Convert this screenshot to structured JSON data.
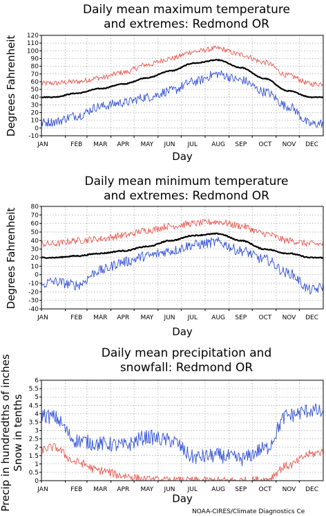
{
  "footer": "NOAA-CIRES/Climate Diagnostics Ce",
  "chart_data": [
    {
      "type": "line",
      "title_lines": [
        "Daily mean maximum temperature",
        "and extremes: Redmond OR"
      ],
      "xlabel": "Day",
      "ylabel": "Degrees Fahrenheit",
      "ylim": [
        -10,
        120
      ],
      "yticks": [
        "-10",
        "0",
        "10",
        "20",
        "30",
        "40",
        "50",
        "60",
        "70",
        "80",
        "90",
        "100",
        "110",
        "120"
      ],
      "xticks": [
        "JAN",
        "FEB",
        "MAR",
        "APR",
        "MAY",
        "JUN",
        "JUL",
        "AUG",
        "SEP",
        "OCT",
        "NOV",
        "DEC"
      ],
      "grid": true,
      "colors": {
        "high": "#e8584f",
        "mean": "#000000",
        "low": "#2f4fd8"
      },
      "series": [
        {
          "key": "high",
          "values": [
            58,
            60,
            65,
            72,
            82,
            90,
            99,
            103,
            95,
            85,
            68,
            57
          ]
        },
        {
          "key": "mean",
          "values": [
            40,
            45,
            51,
            57,
            65,
            74,
            84,
            88,
            78,
            64,
            48,
            40
          ]
        },
        {
          "key": "low",
          "values": [
            8,
            16,
            28,
            33,
            40,
            48,
            60,
            70,
            62,
            47,
            28,
            5
          ]
        }
      ]
    },
    {
      "type": "line",
      "title_lines": [
        "Daily mean minimum temperature",
        "and extremes: Redmond OR"
      ],
      "xlabel": "Day",
      "ylabel": "Degrees Fahrenheit",
      "ylim": [
        -40,
        80
      ],
      "yticks": [
        "-40",
        "-30",
        "-20",
        "-10",
        "0",
        "10",
        "20",
        "30",
        "40",
        "50",
        "60",
        "70",
        "80"
      ],
      "xticks": [
        "JAN",
        "FEB",
        "MAR",
        "APR",
        "MAY",
        "JUN",
        "JUL",
        "AUG",
        "SEP",
        "OCT",
        "NOV",
        "DEC"
      ],
      "grid": true,
      "colors": {
        "high": "#e8584f",
        "mean": "#000000",
        "low": "#2f4fd8"
      },
      "series": [
        {
          "key": "high",
          "values": [
            36,
            40,
            42,
            46,
            52,
            57,
            60,
            62,
            57,
            48,
            40,
            36
          ]
        },
        {
          "key": "mean",
          "values": [
            20,
            22,
            25,
            28,
            33,
            40,
            46,
            48,
            40,
            30,
            25,
            20
          ]
        },
        {
          "key": "low",
          "values": [
            -8,
            -12,
            5,
            15,
            22,
            28,
            35,
            38,
            28,
            18,
            2,
            -18
          ]
        }
      ]
    },
    {
      "type": "line",
      "title_lines": [
        "Daily mean precipitation and",
        "snowfall: Redmond OR"
      ],
      "xlabel": "Day",
      "ylabel_lines": [
        "Precip in hundredths of inches",
        "Snow in tenths"
      ],
      "ylim": [
        0,
        6
      ],
      "yticks": [
        "0",
        "0.5",
        "1",
        "1.5",
        "2",
        "2.5",
        "3",
        "3.5",
        "4",
        "4.5",
        "5",
        "5.5",
        "6"
      ],
      "xticks": [
        "JAN",
        "FEB",
        "MAR",
        "APR",
        "MAY",
        "JUN",
        "JUL",
        "AUG",
        "SEP",
        "OCT",
        "NOV",
        "DEC"
      ],
      "grid": true,
      "colors": {
        "precip": "#2f4fd8",
        "snow": "#e8584f"
      },
      "series": [
        {
          "key": "precip",
          "values": [
            3.8,
            2.4,
            2.2,
            2.1,
            2.6,
            2.4,
            1.4,
            1.5,
            1.3,
            1.9,
            3.9,
            4.2
          ]
        },
        {
          "key": "snow",
          "values": [
            2.0,
            1.1,
            0.6,
            0.3,
            0.05,
            0,
            0,
            0,
            0,
            0.05,
            0.9,
            1.6
          ]
        }
      ]
    }
  ]
}
